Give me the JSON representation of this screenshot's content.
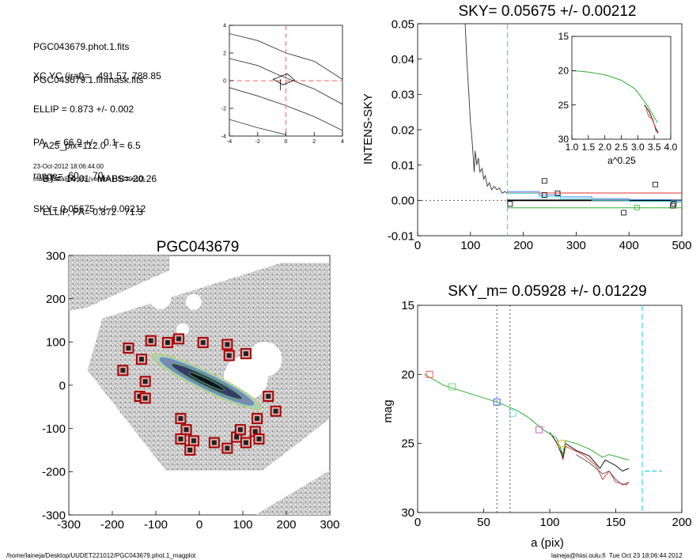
{
  "info": {
    "lines_a": [
      "PGC043679.phot.1.fits",
      "PGC043679.1.finmask.fits"
    ],
    "lines_b": [
      "XC,YC (iraf)=   491.57, 788.85",
      "ELLIP = 0.873 +/- 0.002",
      "PA    = 66.9 +/-   0.1",
      "range=  60.-   70.",
      "SKY= 0.05675 +/- 0.00212"
    ],
    "lines_c": [
      "A25_pix=112.0   T= 6.5",
      "BT=  14.01   MABS=-20.26",
      "ELLIP, PA= 0.872   71.3"
    ],
    "timestamp": "23-Oct-2012 18:06:44.00",
    "program": "make_datalist0.pro (version HS230610)"
  },
  "footer": {
    "left": "/home/laineja/Desktop/UUDET221012/PGC043679.phot.1_magplot",
    "right": "laineja@hiisi.oulu.fi  Tue Oct 23 18:06:44 2012"
  },
  "chart_data": [
    {
      "id": "center-plot",
      "type": "line",
      "xlim": [
        -4,
        4
      ],
      "ylim": [
        -4,
        4
      ],
      "xticks": [
        "-4",
        "-2",
        "0",
        "2",
        "4"
      ],
      "yticks": [
        "-4",
        "-2",
        "0",
        "2",
        "4"
      ],
      "contours": [
        [
          [
            -4,
            3.4
          ],
          [
            -2,
            2.9
          ],
          [
            0,
            2.0
          ],
          [
            2,
            1.4
          ],
          [
            4,
            0.1
          ]
        ],
        [
          [
            -4,
            1.6
          ],
          [
            -2,
            1.1
          ],
          [
            -0.5,
            0.4
          ],
          [
            0.5,
            0
          ],
          [
            2,
            -0.6
          ],
          [
            4,
            -1.7
          ]
        ],
        [
          [
            -4,
            -0.5
          ],
          [
            -2,
            -1.1
          ],
          [
            0,
            -1.8
          ],
          [
            2,
            -2.6
          ],
          [
            4,
            -3.6
          ]
        ],
        [
          [
            -4,
            -2.8
          ],
          [
            -2,
            -3.4
          ],
          [
            0,
            -3.9
          ]
        ]
      ],
      "center": [
        0,
        0
      ],
      "colors": {
        "crosshair": "#ff6060"
      }
    },
    {
      "id": "sky-plot",
      "type": "line",
      "title": "SKY= 0.05675 +/- 0.00212",
      "ylabel": "INTENS-SKY",
      "xlim": [
        0,
        500
      ],
      "ylim": [
        -0.01,
        0.05
      ],
      "xticks": [
        "0",
        "100",
        "200",
        "300",
        "400",
        "500"
      ],
      "yticks": [
        "-0.01",
        "0.00",
        "0.01",
        "0.02",
        "0.03",
        "0.04",
        "0.05"
      ],
      "profile": [
        [
          90,
          0.05
        ],
        [
          93,
          0.04
        ],
        [
          97,
          0.03
        ],
        [
          100,
          0.022
        ],
        [
          103,
          0.017
        ],
        [
          105,
          0.013
        ],
        [
          107,
          0.008
        ],
        [
          109,
          0.014
        ],
        [
          112,
          0.01
        ],
        [
          115,
          0.012
        ],
        [
          118,
          0.008
        ],
        [
          122,
          0.009
        ],
        [
          125,
          0.006
        ],
        [
          128,
          0.007
        ],
        [
          132,
          0.004
        ],
        [
          136,
          0.005
        ],
        [
          140,
          0.003
        ],
        [
          145,
          0.004
        ],
        [
          150,
          0.003
        ],
        [
          155,
          0.0035
        ],
        [
          160,
          0.002
        ],
        [
          165,
          0.0025
        ],
        [
          170,
          0.002
        ]
      ],
      "sky_line": 0.0,
      "red_line": 0.0021,
      "green_line": -0.0021,
      "dash_x": 170,
      "boxes": [
        [
          175,
          -0.001
        ],
        [
          240,
          0.0055
        ],
        [
          240,
          0.0015
        ],
        [
          265,
          0.002
        ],
        [
          390,
          -0.0035
        ],
        [
          415,
          -0.002
        ],
        [
          450,
          0.0045
        ],
        [
          483,
          -0.0015
        ],
        [
          485,
          -0.001
        ]
      ],
      "inset": {
        "xlim": [
          1.0,
          4.0
        ],
        "ylim": [
          15,
          30
        ],
        "xlabel": "a^0.25",
        "xticks": [
          "1.0",
          "1.5",
          "2.0",
          "2.5",
          "3.0",
          "3.5",
          "4.0"
        ],
        "yticks": [
          "15",
          "20",
          "25",
          "30"
        ],
        "green": [
          [
            1.0,
            20.0
          ],
          [
            1.5,
            20.2
          ],
          [
            2.0,
            20.6
          ],
          [
            2.5,
            21.4
          ],
          [
            2.9,
            22.6
          ],
          [
            3.1,
            23.8
          ],
          [
            3.3,
            25.2
          ],
          [
            3.45,
            26.4
          ],
          [
            3.6,
            27.6
          ]
        ],
        "black": [
          [
            3.2,
            25.0
          ],
          [
            3.35,
            26.0
          ],
          [
            3.45,
            27.2
          ],
          [
            3.55,
            28.5
          ],
          [
            3.62,
            29.0
          ]
        ],
        "red": [
          [
            3.25,
            25.6
          ],
          [
            3.35,
            26.8
          ],
          [
            3.45,
            27.0
          ],
          [
            3.55,
            28.8
          ],
          [
            3.62,
            29.2
          ]
        ]
      }
    },
    {
      "id": "image-plot",
      "type": "scatter",
      "title": "PGC043679",
      "xlim": [
        -350,
        350
      ],
      "ylim": [
        -350,
        350
      ],
      "xticks": [
        "-300",
        "-200",
        "-100",
        "0",
        "100",
        "200",
        "300"
      ],
      "yticks": [
        "-300",
        "-200",
        "-100",
        "0",
        "100",
        "200",
        "300"
      ],
      "mask_boxes": [
        [
          -190,
          100
        ],
        [
          -130,
          120
        ],
        [
          -85,
          115
        ],
        [
          -55,
          125
        ],
        [
          10,
          115
        ],
        [
          75,
          110
        ],
        [
          125,
          85
        ],
        [
          80,
          80
        ],
        [
          -155,
          70
        ],
        [
          -205,
          40
        ],
        [
          -145,
          10
        ],
        [
          -160,
          -30
        ],
        [
          -145,
          -35
        ],
        [
          185,
          -30
        ],
        [
          205,
          -70
        ],
        [
          155,
          -90
        ],
        [
          -50,
          -90
        ],
        [
          -35,
          -120
        ],
        [
          -50,
          -145
        ],
        [
          -15,
          -150
        ],
        [
          -25,
          -175
        ],
        [
          40,
          -155
        ],
        [
          75,
          -170
        ],
        [
          100,
          -140
        ],
        [
          110,
          -120
        ],
        [
          150,
          -125
        ],
        [
          160,
          -145
        ],
        [
          125,
          -155
        ]
      ],
      "galaxy": {
        "center": [
          20,
          10
        ],
        "pa_deg": 26,
        "a": 165,
        "b": 22
      },
      "colors": {
        "box": "#aa0000"
      }
    },
    {
      "id": "mag-plot",
      "type": "line",
      "title": "SKY_m=  0.05928 +/- 0.01229",
      "xlabel": "a (pix)",
      "ylabel": "mag",
      "xlim": [
        0,
        200
      ],
      "ylim": [
        30,
        15
      ],
      "xticks": [
        "0",
        "50",
        "100",
        "150",
        "200"
      ],
      "yticks": [
        "15",
        "20",
        "25",
        "30"
      ],
      "green": [
        [
          5,
          20.0
        ],
        [
          20,
          20.8
        ],
        [
          40,
          21.4
        ],
        [
          60,
          22.0
        ],
        [
          75,
          22.6
        ],
        [
          85,
          23.2
        ],
        [
          95,
          24.0
        ],
        [
          105,
          24.6
        ],
        [
          110,
          25.8
        ],
        [
          112,
          24.8
        ],
        [
          120,
          25.0
        ],
        [
          130,
          25.4
        ],
        [
          140,
          26.0
        ],
        [
          145,
          25.8
        ],
        [
          160,
          26.2
        ]
      ],
      "black": [
        [
          100,
          24.2
        ],
        [
          105,
          24.9
        ],
        [
          110,
          26.0
        ],
        [
          112,
          25.0
        ],
        [
          120,
          25.5
        ],
        [
          130,
          25.9
        ],
        [
          138,
          26.8
        ],
        [
          142,
          26.2
        ],
        [
          150,
          26.6
        ],
        [
          155,
          27.0
        ],
        [
          160,
          26.8
        ]
      ],
      "gray": [
        [
          120,
          25.8
        ],
        [
          130,
          26.4
        ],
        [
          140,
          27.2
        ],
        [
          145,
          27.0
        ],
        [
          150,
          27.6
        ],
        [
          155,
          28.0
        ],
        [
          160,
          27.8
        ]
      ],
      "red": [
        [
          108,
          25.2
        ],
        [
          110,
          26.2
        ],
        [
          112,
          25.2
        ],
        [
          125,
          25.8
        ],
        [
          135,
          26.6
        ],
        [
          140,
          27.6
        ],
        [
          145,
          27.0
        ],
        [
          150,
          27.8
        ],
        [
          158,
          28.0
        ],
        [
          160,
          27.8
        ]
      ],
      "boxes": [
        {
          "x": 9,
          "y": 20.0,
          "c": "#ff6060"
        },
        {
          "x": 26,
          "y": 20.9,
          "c": "#7bd67b"
        },
        {
          "x": 60,
          "y": 22.0,
          "c": "#4060ff"
        },
        {
          "x": 72,
          "y": 22.8,
          "c": "#60e0e0"
        },
        {
          "x": 92,
          "y": 24.0,
          "c": "#c060c0"
        },
        {
          "x": 109,
          "y": 25.0,
          "c": "#e0c040"
        }
      ],
      "vlines_dotted": [
        60,
        70
      ],
      "dash_x": 170,
      "sky_seg": {
        "x0": 172,
        "x1": 185,
        "y": 27.0
      }
    }
  ]
}
